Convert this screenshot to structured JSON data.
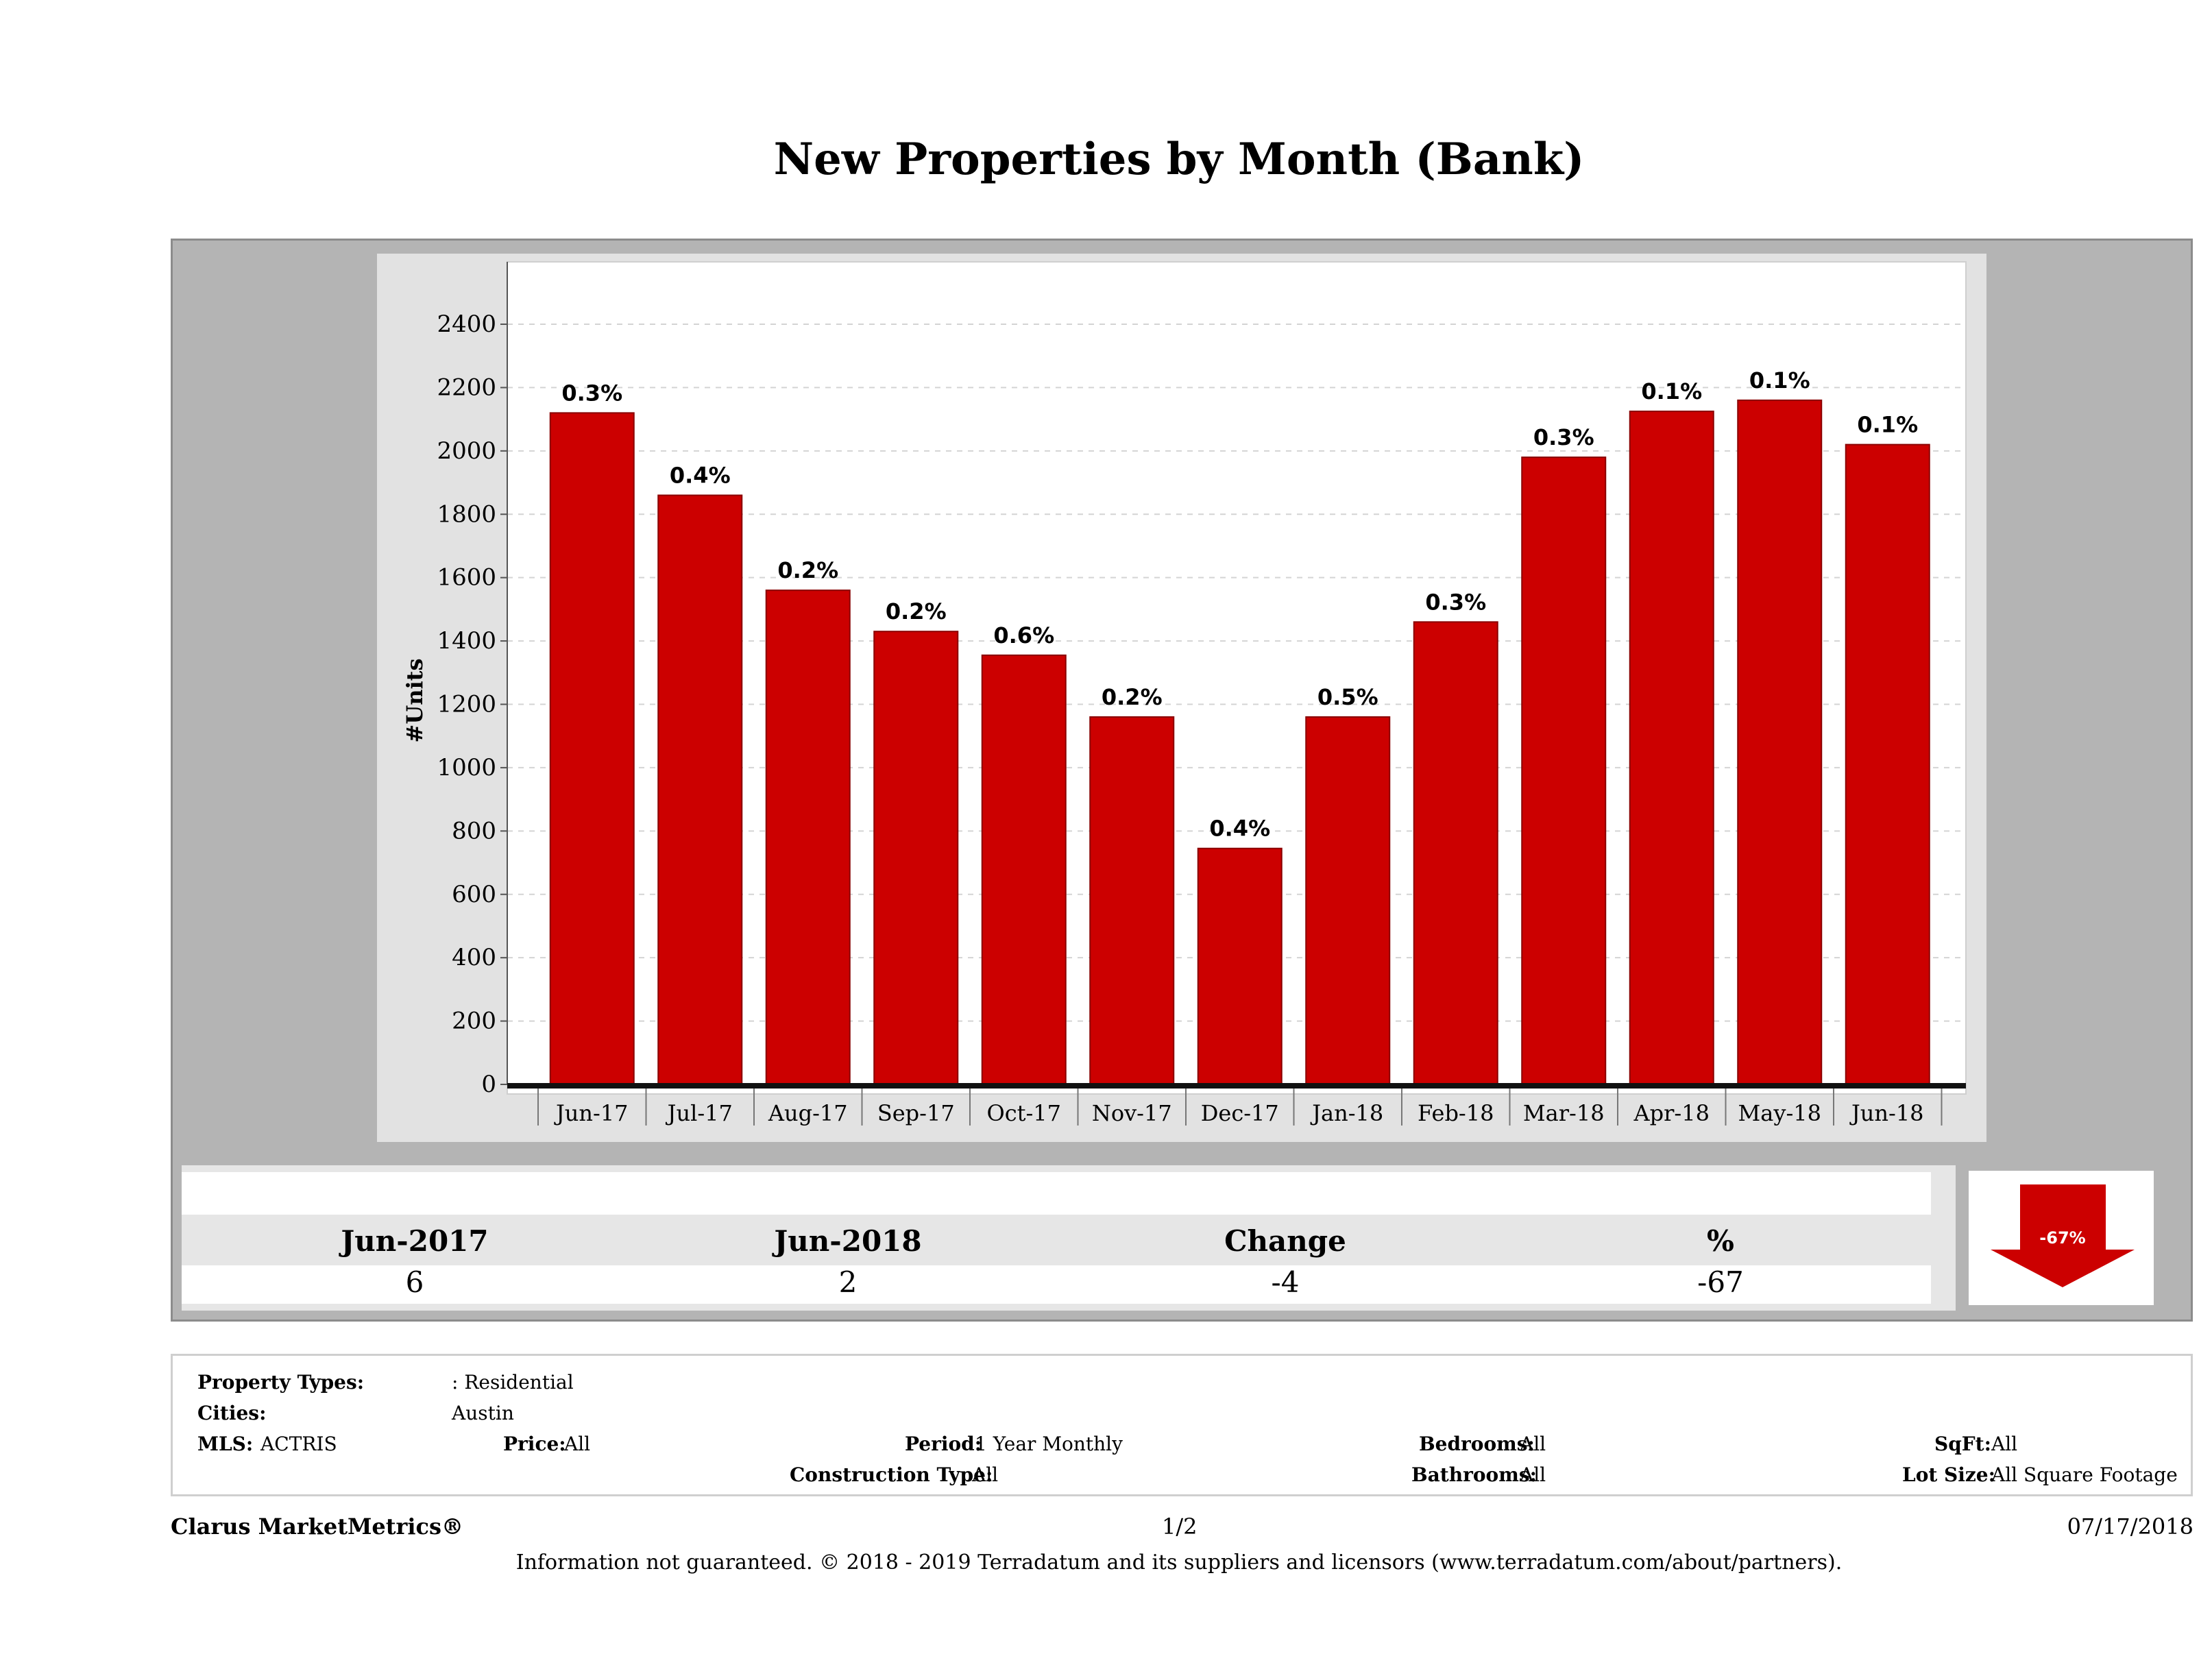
{
  "header": {
    "title": "New Properties by Month (Bank)"
  },
  "chart_data": {
    "type": "bar",
    "title": "New Properties by Month (Bank)",
    "ylabel": "#Units",
    "xlabel": "",
    "ylim": [
      0,
      2400
    ],
    "yticks": [
      0,
      200,
      400,
      600,
      800,
      1000,
      1200,
      1400,
      1600,
      1800,
      2000,
      2200,
      2400
    ],
    "grid": true,
    "categories": [
      "Jun-17",
      "Jul-17",
      "Aug-17",
      "Sep-17",
      "Oct-17",
      "Nov-17",
      "Dec-17",
      "Jan-18",
      "Feb-18",
      "Mar-18",
      "Apr-18",
      "May-18",
      "Jun-18"
    ],
    "values": [
      2120,
      1860,
      1560,
      1430,
      1355,
      1160,
      745,
      1160,
      1460,
      1980,
      2125,
      2160,
      2020
    ],
    "data_labels": [
      "0.3%",
      "0.4%",
      "0.2%",
      "0.2%",
      "0.6%",
      "0.2%",
      "0.4%",
      "0.5%",
      "0.3%",
      "0.3%",
      "0.1%",
      "0.1%",
      "0.1%"
    ],
    "bar_color": "#cc0000"
  },
  "summary": {
    "col1_label": "Jun-2017",
    "col1_value": "6",
    "col2_label": "Jun-2018",
    "col2_value": "2",
    "col3_label": "Change",
    "col3_value": "-4",
    "col4_label": "%",
    "col4_value": "-67",
    "arrow_label": "-67%",
    "arrow_color": "#cc0000"
  },
  "filters": {
    "property_types_label": "Property Types:",
    "property_types_value": ": Residential",
    "cities_label": "Cities:",
    "cities_value": "Austin",
    "mls_label": "MLS:",
    "mls_value": "ACTRIS",
    "price_label": "Price:",
    "price_value": "All",
    "period_label": "Period:",
    "period_value": "1 Year Monthly",
    "construction_label": "Construction Type:",
    "construction_value": "All",
    "bedrooms_label": "Bedrooms:",
    "bedrooms_value": "All",
    "bathrooms_label": "Bathrooms:",
    "bathrooms_value": "All",
    "sqft_label": "SqFt:",
    "sqft_value": "All",
    "lot_label": "Lot Size:",
    "lot_value": "All Square Footage"
  },
  "footer": {
    "brand": "Clarus MarketMetrics®",
    "page": "1/2",
    "date": "07/17/2018",
    "note": "Information not guaranteed. © 2018 - 2019 Terradatum and its suppliers and licensors (www.terradatum.com/about/partners)."
  }
}
